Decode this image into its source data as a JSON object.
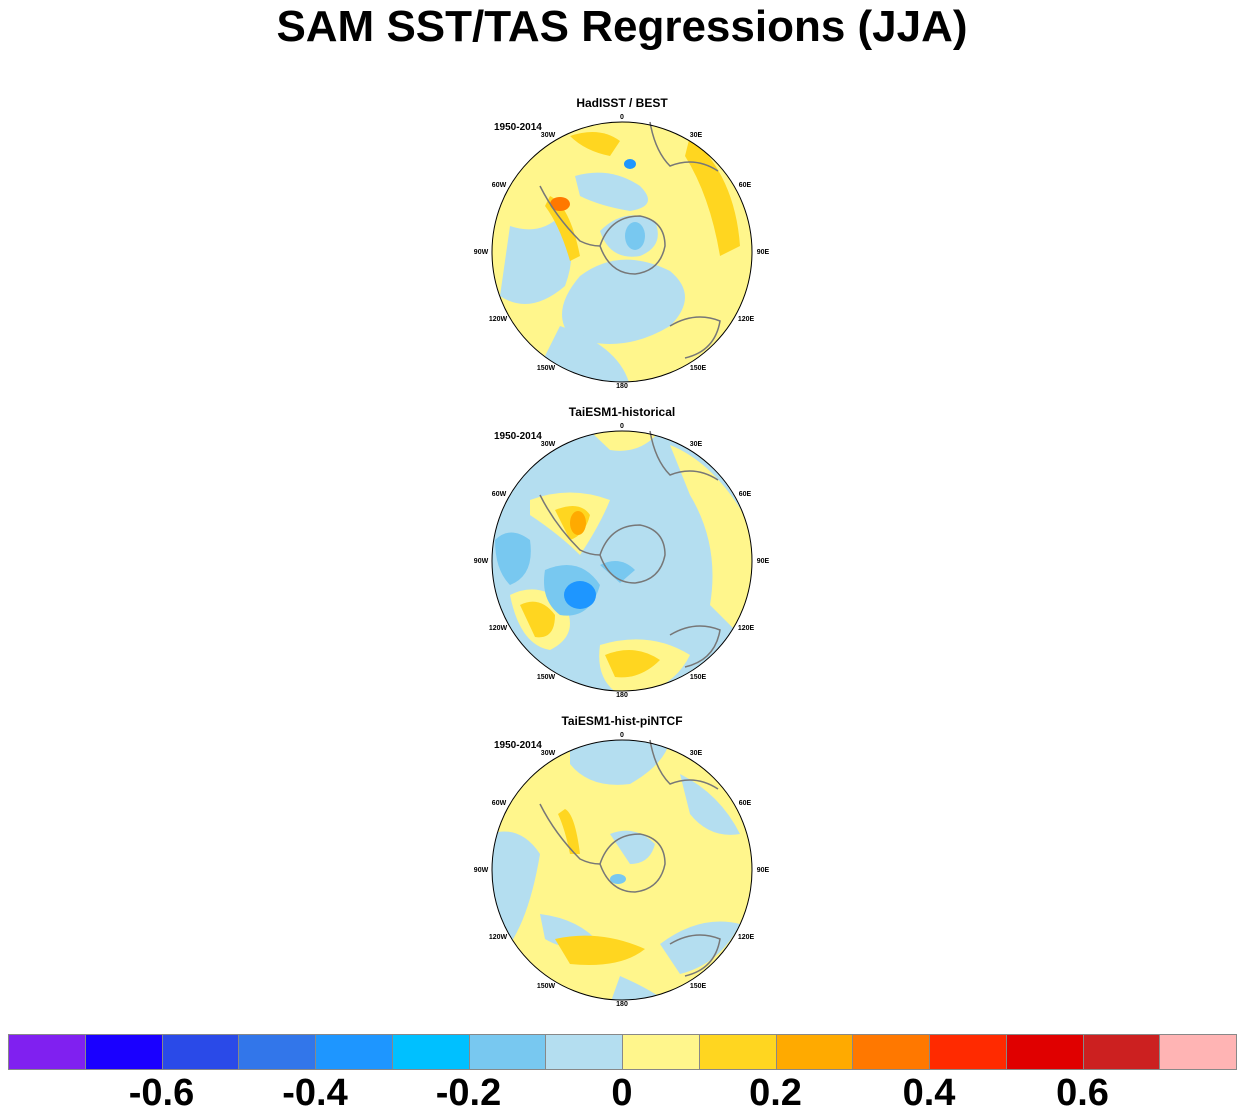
{
  "title": "SAM SST/TAS Regressions (JJA)",
  "panels": [
    {
      "title": "HadISST / BEST",
      "period": "1950-2014"
    },
    {
      "title": "TaiESM1-historical",
      "period": "1950-2014"
    },
    {
      "title": "TaiESM1-hist-piNTCF",
      "period": "1950-2014"
    }
  ],
  "longitude_labels": [
    "0",
    "30E",
    "60E",
    "90E",
    "120E",
    "150E",
    "180",
    "150W",
    "120W",
    "90W",
    "60W",
    "30W"
  ],
  "colorbar": {
    "colors": [
      "#8020f0",
      "#1a00ff",
      "#2a4ae8",
      "#3276ea",
      "#1e96ff",
      "#00c0ff",
      "#78c8f0",
      "#b4def0",
      "#fff68c",
      "#ffd620",
      "#ffaa00",
      "#ff7800",
      "#ff2a00",
      "#e00000",
      "#cc2020",
      "#ffb4b4"
    ],
    "labels": [
      "-0.6",
      "-0.4",
      "-0.2",
      "0",
      "0.2",
      "0.4",
      "0.6"
    ]
  },
  "colors": {
    "land_outline": "#777777",
    "zero_band": "#b4def0",
    "positive_weak": "#fff68c"
  }
}
